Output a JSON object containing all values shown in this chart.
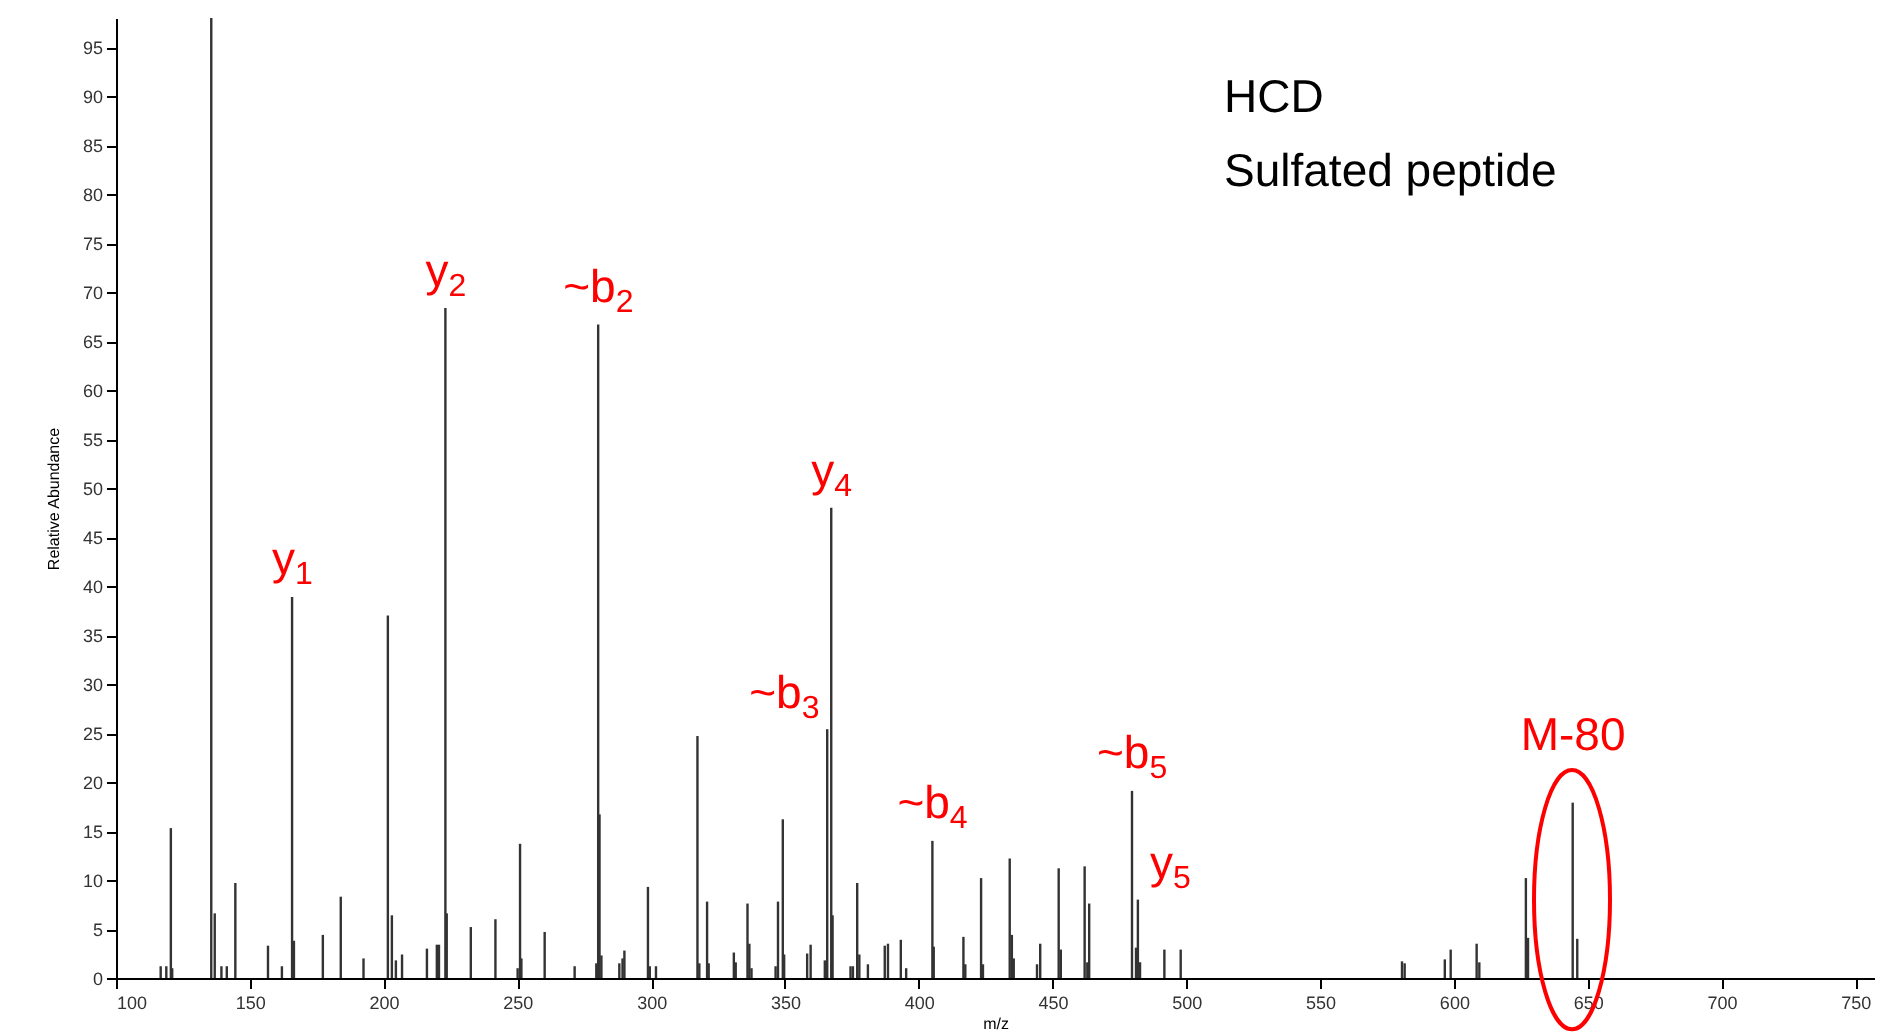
{
  "chart_data": {
    "type": "bar",
    "xlabel": "m/z",
    "ylabel": "Relative Abundance",
    "color": "#333333",
    "x": [
      116.7,
      118.8,
      120.5,
      121.0,
      135.6,
      136.9,
      139.4,
      141.4,
      144.6,
      156.8,
      162.0,
      165.8,
      166.5,
      177.3,
      184.0,
      192.5,
      201.6,
      203.1,
      204.6,
      206.9,
      216.2,
      219.9,
      220.7,
      223.1,
      223.6,
      232.6,
      241.8,
      250.1,
      251.0,
      251.5,
      260.2,
      271.4,
      279.5,
      280.2,
      280.7,
      281.4,
      288.1,
      289.3,
      290.0,
      298.8,
      299.5,
      301.8,
      317.3,
      318.0,
      320.9,
      321.5,
      330.9,
      331.6,
      336.0,
      336.7,
      337.5,
      346.5,
      347.4,
      349.2,
      349.7,
      358.3,
      359.6,
      364.9,
      365.8,
      367.3,
      367.8,
      374.5,
      375.4,
      377.0,
      377.8,
      381.0,
      387.3,
      388.5,
      393.3,
      395.3,
      405.1,
      405.6,
      416.7,
      417.4,
      423.3,
      424.0,
      434.0,
      434.8,
      435.5,
      444.2,
      445.4,
      452.3,
      453.1,
      462.0,
      463.0,
      463.7,
      479.7,
      481.2,
      481.9,
      482.7,
      491.8,
      497.9,
      580.6,
      581.6,
      596.6,
      598.8,
      608.5,
      609.5,
      626.9,
      627.7,
      644.4,
      646.1
    ],
    "values": [
      1.2,
      1.2,
      15.3,
      1.0,
      98,
      6.6,
      1.2,
      1.2,
      9.7,
      3.3,
      1.2,
      38.9,
      3.8,
      4.4,
      8.3,
      2.0,
      37.0,
      6.4,
      1.8,
      2.4,
      3.0,
      3.4,
      3.4,
      68.4,
      6.6,
      5.2,
      6.0,
      1.0,
      13.7,
      2.0,
      4.7,
      1.2,
      1.5,
      66.7,
      16.7,
      2.3,
      1.5,
      2.0,
      2.8,
      9.3,
      1.2,
      1.2,
      24.7,
      1.5,
      7.8,
      1.5,
      2.6,
      1.6,
      7.6,
      3.5,
      1.0,
      1.2,
      7.8,
      16.2,
      2.4,
      2.5,
      3.4,
      1.8,
      25.4,
      48.0,
      6.4,
      1.2,
      1.2,
      9.7,
      2.4,
      1.4,
      3.3,
      3.5,
      3.9,
      1.0,
      14.0,
      3.2,
      4.2,
      1.4,
      10.2,
      1.4,
      12.2,
      4.4,
      2.0,
      1.4,
      3.5,
      11.2,
      2.9,
      11.4,
      1.6,
      7.6,
      19.1,
      3.1,
      8.0,
      1.6,
      2.9,
      2.9,
      1.7,
      1.5,
      1.9,
      2.9,
      3.5,
      1.6,
      10.2,
      4.1,
      17.9,
      4.0
    ],
    "xlim": [
      100,
      757
    ],
    "xticks": [
      100,
      150,
      200,
      250,
      300,
      350,
      400,
      450,
      500,
      550,
      600,
      650,
      700,
      750
    ],
    "ylim": [
      0,
      98
    ],
    "yticks": [
      0,
      5,
      10,
      15,
      20,
      25,
      30,
      35,
      40,
      45,
      50,
      55,
      60,
      65,
      70,
      75,
      80,
      85,
      90,
      95
    ],
    "annotations": [
      "HCD",
      "Sulfated peptide",
      {
        "text": "y$_{1}$",
        "x": 165.8,
        "y": 38.9
      },
      {
        "text": "y$_{2}$",
        "x": 223.1,
        "y": 68.4
      },
      {
        "text": "~b$_{2}$",
        "x": 280.2,
        "y": 66.7
      },
      {
        "text": "~b$_{3}$",
        "x": 365.8,
        "y": 25.4
      },
      {
        "text": "y$_{4}$",
        "x": 367.3,
        "y": 48.0
      },
      {
        "text": "~b$_{4}$",
        "x": 405.1,
        "y": 14.0
      },
      {
        "text": "~b$_{5}$",
        "x": 479.7,
        "y": 19.1
      },
      {
        "text": "y$_{5}$",
        "x": 481.9,
        "y": 8.0
      },
      {
        "text": "M-80",
        "x": 644.4,
        "y": 17.9
      }
    ]
  }
}
